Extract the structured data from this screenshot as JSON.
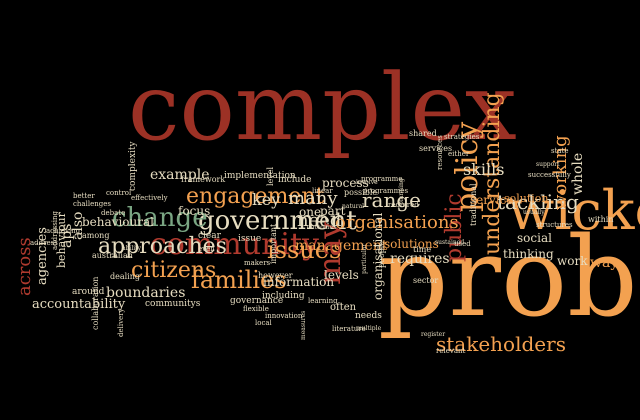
{
  "palette": {
    "red": "#b03a2e",
    "orange": "#f3a150",
    "cream": "#e6dcc0",
    "green": "#7aa683",
    "darkred": "#9c3125"
  },
  "words": [
    {
      "text": "complex",
      "color": "darkred"
    },
    {
      "text": "problems",
      "color": "orange"
    },
    {
      "text": "wicked",
      "color": "orange"
    },
    {
      "text": "community",
      "color": "red"
    },
    {
      "text": "government",
      "color": "cream"
    },
    {
      "text": "change",
      "color": "green"
    },
    {
      "text": "engagement",
      "color": "orange"
    },
    {
      "text": "approaches",
      "color": "cream"
    },
    {
      "text": "families",
      "color": "orange"
    },
    {
      "text": "issues",
      "color": "orange"
    },
    {
      "text": "citizens",
      "color": "orange"
    },
    {
      "text": "stakeholders",
      "color": "orange"
    },
    {
      "text": "policy",
      "color": "orange"
    },
    {
      "text": "tackling",
      "color": "cream"
    },
    {
      "text": "understanding",
      "color": "orange"
    },
    {
      "text": "public",
      "color": "red"
    },
    {
      "text": "organisations",
      "color": "orange"
    },
    {
      "text": "work",
      "color": "cream"
    },
    {
      "text": "way",
      "color": "orange"
    },
    {
      "text": "working",
      "color": "orange"
    },
    {
      "text": "whole",
      "color": "cream"
    },
    {
      "text": "example",
      "color": "cream"
    },
    {
      "text": "key",
      "color": "cream"
    },
    {
      "text": "many",
      "color": "cream"
    },
    {
      "text": "need",
      "color": "cream"
    },
    {
      "text": "range",
      "color": "cream"
    },
    {
      "text": "management",
      "color": "orange"
    },
    {
      "text": "requires",
      "color": "cream"
    },
    {
      "text": "solutions",
      "color": "orange"
    },
    {
      "text": "may",
      "color": "red"
    },
    {
      "text": "focus",
      "color": "cream"
    },
    {
      "text": "boundaries",
      "color": "cream"
    },
    {
      "text": "aps",
      "color": "cream"
    },
    {
      "text": "also",
      "color": "cream"
    },
    {
      "text": "across",
      "color": "red"
    },
    {
      "text": "agencies",
      "color": "cream"
    },
    {
      "text": "accountability",
      "color": "cream"
    },
    {
      "text": "behavioural",
      "color": "cream"
    },
    {
      "text": "behaviour",
      "color": "cream"
    },
    {
      "text": "skills",
      "color": "cream"
    },
    {
      "text": "service",
      "color": "orange"
    },
    {
      "text": "solution",
      "color": "orange"
    },
    {
      "text": "social",
      "color": "cream"
    },
    {
      "text": "thinking",
      "color": "cream"
    },
    {
      "text": "organisational",
      "color": "cream"
    },
    {
      "text": "information",
      "color": "cream"
    },
    {
      "text": "levels",
      "color": "cream"
    },
    {
      "text": "process",
      "color": "cream"
    },
    {
      "text": "part",
      "color": "cream"
    },
    {
      "text": "one",
      "color": "cream"
    },
    {
      "text": "include",
      "color": "cream"
    },
    {
      "text": "implementation",
      "color": "cream"
    },
    {
      "text": "framework",
      "color": "cream"
    },
    {
      "text": "australian",
      "color": "cream"
    },
    {
      "text": "communitys",
      "color": "cream"
    },
    {
      "text": "collaboration",
      "color": "cream"
    },
    {
      "text": "governance",
      "color": "cream"
    },
    {
      "text": "including",
      "color": "cream"
    },
    {
      "text": "often",
      "color": "cream"
    },
    {
      "text": "needs",
      "color": "cream"
    },
    {
      "text": "relevant",
      "color": "cream"
    },
    {
      "text": "sector",
      "color": "cream"
    },
    {
      "text": "people",
      "color": "cream"
    },
    {
      "text": "time",
      "color": "cream"
    },
    {
      "text": "clear",
      "color": "cream"
    },
    {
      "text": "issue",
      "color": "cream"
    },
    {
      "text": "important",
      "color": "cream"
    },
    {
      "text": "however",
      "color": "cream"
    },
    {
      "text": "dealing",
      "color": "cream"
    },
    {
      "text": "around",
      "color": "cream"
    },
    {
      "text": "complexity",
      "color": "cream"
    },
    {
      "text": "effectively",
      "color": "cream"
    },
    {
      "text": "shared",
      "color": "cream"
    },
    {
      "text": "strategies",
      "color": "cream"
    },
    {
      "text": "services",
      "color": "cream"
    },
    {
      "text": "programme",
      "color": "cream"
    },
    {
      "text": "programmes",
      "color": "cream"
    },
    {
      "text": "traditional",
      "color": "cream"
    },
    {
      "text": "usually",
      "color": "cream"
    },
    {
      "text": "within",
      "color": "cream"
    },
    {
      "text": "structures",
      "color": "cream"
    },
    {
      "text": "state",
      "color": "cream"
    },
    {
      "text": "either",
      "color": "cream"
    },
    {
      "text": "resources",
      "color": "cream"
    },
    {
      "text": "literature",
      "color": "cream"
    },
    {
      "text": "innovation",
      "color": "cream"
    },
    {
      "text": "learning",
      "color": "cream"
    },
    {
      "text": "delivery",
      "color": "cream"
    },
    {
      "text": "addressing",
      "color": "cream"
    },
    {
      "text": "among",
      "color": "cream"
    },
    {
      "text": "better",
      "color": "cream"
    },
    {
      "text": "challenges",
      "color": "cream"
    },
    {
      "text": "control",
      "color": "cream"
    },
    {
      "text": "debate",
      "color": "cream"
    },
    {
      "text": "even",
      "color": "cream"
    },
    {
      "text": "local",
      "color": "cream"
    },
    {
      "text": "flexible",
      "color": "cream"
    },
    {
      "text": "possible",
      "color": "cream"
    },
    {
      "text": "required",
      "color": "cream"
    },
    {
      "text": "successfully",
      "color": "cream"
    },
    {
      "text": "support",
      "color": "cream"
    },
    {
      "text": "used",
      "color": "cream"
    },
    {
      "text": "level",
      "color": "cream"
    },
    {
      "text": "outcomes",
      "color": "cream"
    },
    {
      "text": "linear",
      "color": "cream"
    },
    {
      "text": "planning",
      "color": "cream"
    },
    {
      "text": "multiple",
      "color": "cream"
    },
    {
      "text": "register",
      "color": "cream"
    },
    {
      "text": "achieving",
      "color": "cream"
    },
    {
      "text": "involve",
      "color": "cream"
    },
    {
      "text": "makers",
      "color": "cream"
    },
    {
      "text": "sustained",
      "color": "cream"
    },
    {
      "text": "measures",
      "color": "cream"
    },
    {
      "text": "ability",
      "color": "cream"
    },
    {
      "text": "address",
      "color": "cream"
    },
    {
      "text": "natural",
      "color": "cream"
    },
    {
      "text": "particular",
      "color": "cream"
    }
  ]
}
